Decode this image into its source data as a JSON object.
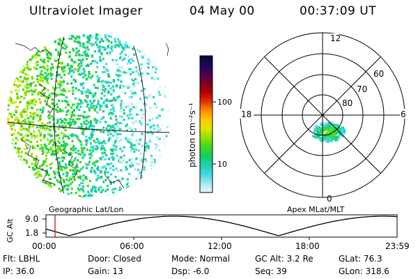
{
  "header": {
    "title": "Ultraviolet Imager",
    "date": "04 May 00",
    "time": "00:37:09 UT"
  },
  "colorbar": {
    "label": "photon cm⁻²s⁻¹",
    "ticks": [
      "100",
      "10"
    ],
    "colors": [
      "#000a30",
      "#1a0a55",
      "#4a0050",
      "#7a0020",
      "#b00000",
      "#e03000",
      "#ff8c00",
      "#ffc800",
      "#d8e800",
      "#90e000",
      "#40d820",
      "#10d060",
      "#20d0b0",
      "#40d8e0",
      "#a8e8f0",
      "#e8f6fa"
    ]
  },
  "geo_map": {
    "caption": "Geographic Lat/Lon"
  },
  "polar_map": {
    "caption": "Apex MLat/MLT",
    "mlt_labels": {
      "top": "12",
      "left": "18",
      "right": "6",
      "bottom": "0"
    },
    "lat_labels": [
      "60",
      "70",
      "80"
    ]
  },
  "altitude_plot": {
    "ylabel": "GC Alt",
    "yticks": [
      "9.0",
      "1.8"
    ],
    "xticks": [
      "00:00",
      "06:00",
      "12:00",
      "18:00",
      "23:59"
    ],
    "current_marker_hour": 0.62
  },
  "info": {
    "filter": "Flt: LBHL",
    "door": "Door: Closed",
    "mode": "Mode: Normal",
    "gc_alt": "GC Alt: 3.2 Re",
    "glat": "GLat:  76.3",
    "ip": "IP: 36.0",
    "gain": "Gain: 13",
    "dsp": "Dsp:    -6.0",
    "seq": "Seq: 39",
    "glon": "GLon: 318.6"
  }
}
